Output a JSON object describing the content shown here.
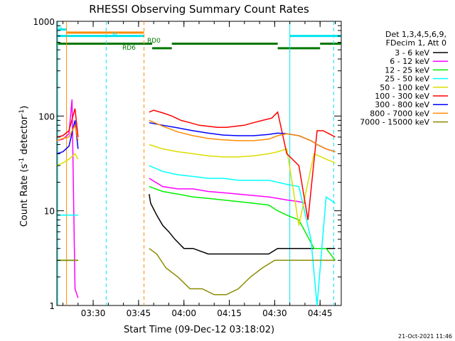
{
  "chart_data": {
    "type": "line",
    "title": "RHESSI Observing Summary Count Rates",
    "xlabel": "Start Time (09-Dec-12 03:18:02)",
    "ylabel": "Count Rate (s",
    "ylabel_sup": "-1",
    "ylabel_mid": " detector",
    "ylabel_sup2": "-1",
    "ylabel_end": ")",
    "x_unit": "minutes since 03:18:02",
    "xlim": [
      0,
      94
    ],
    "ylim": [
      1,
      1000
    ],
    "yscale": "log",
    "xticks": [
      {
        "label": "03:30",
        "x": 12
      },
      {
        "label": "03:45",
        "x": 27
      },
      {
        "label": "04:00",
        "x": 42
      },
      {
        "label": "04:15",
        "x": 57
      },
      {
        "label": "04:30",
        "x": 72
      },
      {
        "label": "04:45",
        "x": 87
      }
    ],
    "yticks": [
      {
        "label": "1",
        "y": 1
      },
      {
        "label": "10",
        "y": 10
      },
      {
        "label": "100",
        "y": 100
      },
      {
        "label": "1000",
        "y": 1000
      }
    ],
    "legend_header": [
      "Det 1,3,4,5,6,9,",
      "FDecim 1, Att 0"
    ],
    "legend_position": "right",
    "series": [
      {
        "name": "3 - 6 keV",
        "color": "#000000",
        "x": [
          0,
          1,
          2,
          3,
          4,
          5,
          6,
          7,
          30.5,
          31,
          33,
          35,
          37,
          39,
          42,
          45,
          50,
          55,
          60,
          65,
          70,
          73,
          78,
          82,
          86,
          89,
          92
        ],
        "y": [
          3,
          3,
          3,
          3,
          3,
          3,
          3,
          3,
          15,
          12,
          9,
          7,
          6,
          5,
          4,
          4,
          3.5,
          3.5,
          3.5,
          3.5,
          3.5,
          4,
          4,
          4,
          4,
          4,
          4
        ]
      },
      {
        "name": "6 - 12 keV",
        "color": "#ff00ff",
        "x": [
          0,
          2,
          4,
          5,
          6,
          7,
          30.5,
          35,
          40,
          45,
          50,
          55,
          60,
          65,
          70,
          73,
          76,
          80,
          82
        ],
        "y": [
          55,
          57,
          65,
          150,
          1.5,
          1.2,
          22,
          18,
          17,
          17,
          16,
          15.5,
          15,
          14.5,
          14,
          13.5,
          13,
          12.5,
          12
        ]
      },
      {
        "name": "12 - 25 keV",
        "color": "#00ee00",
        "x": [
          0,
          2,
          4,
          6,
          7,
          30.5,
          35,
          40,
          45,
          50,
          55,
          60,
          65,
          70,
          73,
          76,
          80,
          85,
          89,
          92
        ],
        "y": [
          3,
          3,
          3,
          3,
          3,
          18,
          16,
          15,
          14,
          13.5,
          13,
          12.5,
          12,
          11.5,
          10,
          9,
          8,
          4,
          4,
          3
        ]
      },
      {
        "name": "25 - 50 keV",
        "color": "#00ffff",
        "x": [
          0,
          2,
          4,
          6,
          7,
          30.5,
          35,
          40,
          45,
          50,
          55,
          60,
          65,
          70,
          73,
          76,
          80,
          84,
          86,
          89,
          92
        ],
        "y": [
          9,
          9,
          9,
          9,
          9,
          30,
          26,
          24,
          23,
          22,
          22,
          21,
          21,
          21,
          20,
          19,
          18,
          5,
          1,
          14,
          12
        ]
      },
      {
        "name": "50 - 100 keV",
        "color": "#dddd00",
        "x": [
          0,
          2,
          4,
          6,
          7,
          30.5,
          35,
          40,
          45,
          50,
          55,
          60,
          65,
          70,
          73,
          76,
          80,
          85,
          89,
          92
        ],
        "y": [
          30,
          32,
          35,
          40,
          35,
          50,
          45,
          42,
          40,
          38,
          37,
          37,
          38,
          40,
          42,
          45,
          7,
          40,
          35,
          32
        ]
      },
      {
        "name": "100 - 300 keV",
        "color": "#ff0000",
        "x": [
          0,
          2,
          4,
          6,
          7,
          30.5,
          32,
          35,
          38,
          41,
          44,
          47,
          50,
          53,
          56,
          59,
          62,
          65,
          68,
          71,
          73,
          76,
          80,
          83,
          86,
          88,
          90,
          92
        ],
        "y": [
          60,
          62,
          70,
          120,
          60,
          110,
          115,
          108,
          100,
          90,
          85,
          80,
          78,
          76,
          76,
          78,
          80,
          85,
          90,
          95,
          110,
          40,
          30,
          8,
          70,
          70,
          65,
          60
        ]
      },
      {
        "name": "300 - 800 keV",
        "color": "#0000ff",
        "x": [
          0,
          2,
          4,
          6,
          7,
          30.5,
          35,
          40,
          45,
          50,
          55,
          60,
          65,
          70,
          73,
          76,
          80,
          84,
          86,
          89,
          92
        ],
        "y": [
          40,
          42,
          48,
          90,
          45,
          85,
          80,
          75,
          70,
          66,
          63,
          62,
          62,
          64,
          66,
          65,
          62,
          55,
          50,
          45,
          42
        ]
      },
      {
        "name": "800 - 7000 keV",
        "color": "#ff8c00",
        "x": [
          0,
          2,
          4,
          6,
          7,
          30.5,
          35,
          40,
          45,
          50,
          55,
          60,
          65,
          70,
          73,
          76,
          80,
          84,
          86,
          89,
          92
        ],
        "y": [
          55,
          58,
          60,
          80,
          55,
          90,
          78,
          68,
          62,
          58,
          56,
          55,
          55,
          57,
          62,
          65,
          62,
          55,
          50,
          45,
          42
        ]
      },
      {
        "name": "7000 - 15000 keV",
        "color": "#8b8b00",
        "x": [
          0,
          2,
          4,
          6,
          7,
          30.5,
          33,
          36,
          40,
          44,
          48,
          52,
          56,
          60,
          64,
          68,
          72,
          76,
          80,
          84,
          88,
          92
        ],
        "y": [
          3,
          3,
          3,
          3,
          3,
          4,
          3.5,
          2.5,
          2,
          1.5,
          1.5,
          1.3,
          1.3,
          1.5,
          2,
          2.5,
          3,
          3,
          3,
          3,
          3,
          3
        ]
      }
    ],
    "vertical_lines": [
      {
        "x": 0.3,
        "color": "#00e5ee",
        "style": "solid"
      },
      {
        "x": 3.2,
        "color": "#ff8c00",
        "style": "solid"
      },
      {
        "x": 16.3,
        "color": "#00e5ee",
        "style": "dashed"
      },
      {
        "x": 28.8,
        "color": "#ff8c00",
        "style": "dashed"
      },
      {
        "x": 77.0,
        "color": "#00e5ee",
        "style": "solid"
      },
      {
        "x": 91.5,
        "color": "#00e5ee",
        "style": "dashed"
      }
    ],
    "flag_bars": [
      {
        "label": "S",
        "color": "#00e5ee",
        "segments": [
          [
            0.3,
            3.2
          ]
        ],
        "y": 820
      },
      {
        "label": "",
        "color": "#ff8c00",
        "segments": [
          [
            3.2,
            28.8
          ]
        ],
        "y": 760
      },
      {
        "label": "N",
        "color": "#00e5ee",
        "segments": [
          [
            0.3,
            28.8
          ],
          [
            77,
            94
          ]
        ],
        "y": 700
      },
      {
        "label": "RD0",
        "color": "#007700",
        "segments": [
          [
            0,
            31.5
          ],
          [
            38,
            73
          ],
          [
            87,
            94
          ]
        ],
        "y": 580
      },
      {
        "label": "RD6",
        "color": "#007700",
        "segments": [
          [
            31.5,
            38
          ],
          [
            73,
            87
          ]
        ],
        "y": 520
      }
    ],
    "grid": false
  },
  "footer": {
    "timestamp": "21-Oct-2021 11:46"
  }
}
